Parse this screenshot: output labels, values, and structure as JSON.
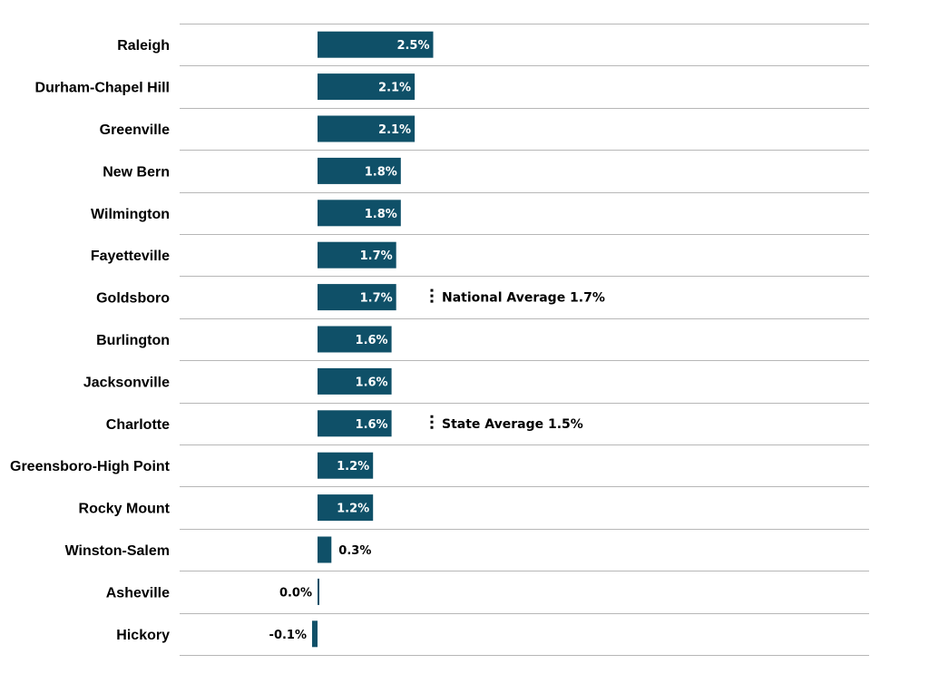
{
  "chart_data": {
    "type": "bar",
    "orientation": "horizontal",
    "title": "",
    "xlabel": "",
    "ylabel": "",
    "categories": [
      "Raleigh",
      "Durham-Chapel Hill",
      "Greenville",
      "New Bern",
      "Wilmington",
      "Fayetteville",
      "Goldsboro",
      "Burlington",
      "Jacksonville",
      "Charlotte",
      "Greensboro-High Point",
      "Rocky Mount",
      "Winston-Salem",
      "Asheville",
      "Hickory"
    ],
    "values": [
      2.5,
      2.1,
      2.1,
      1.8,
      1.8,
      1.7,
      1.7,
      1.6,
      1.6,
      1.6,
      1.2,
      1.2,
      0.3,
      0.0,
      -0.1
    ],
    "value_labels": [
      "2.5%",
      "2.1%",
      "2.1%",
      "1.8%",
      "1.8%",
      "1.7%",
      "1.7%",
      "1.6%",
      "1.6%",
      "1.6%",
      "1.2%",
      "1.2%",
      "0.3%",
      "0.0%",
      "-0.1%"
    ],
    "bar_color": "#0f5068",
    "grid": true,
    "legend": "none",
    "annotations": [
      {
        "text": "National Average 1.7%",
        "category": "Goldsboro"
      },
      {
        "text": "State Average 1.5%",
        "category": "Charlotte"
      }
    ]
  }
}
